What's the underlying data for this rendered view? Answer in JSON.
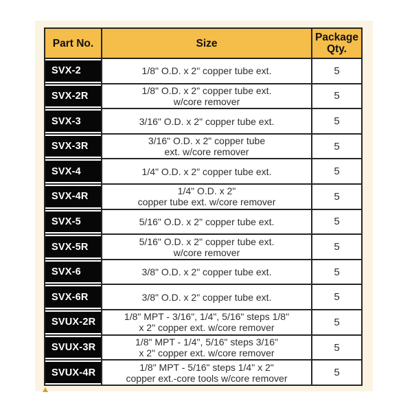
{
  "colors": {
    "page_bg": "#ffffff",
    "halo": "#fbf4e2",
    "header_bg": "#f5bd4a",
    "border": "#262626",
    "part_bg": "#070707",
    "part_text": "#ffffff",
    "size_text": "#2e2e2e",
    "marker": "#d8a31e"
  },
  "table": {
    "header": {
      "part_no": "Part No.",
      "size": "Size",
      "package_qty": "Package\nQty."
    },
    "rows": [
      {
        "part": "SVX-2",
        "size": "1/8\" O.D. x 2\" copper tube ext.",
        "qty": "5"
      },
      {
        "part": "SVX-2R",
        "size": "1/8\" O.D. x 2\" copper tube ext.\nw/core remover",
        "qty": "5"
      },
      {
        "part": "SVX-3",
        "size": "3/16\" O.D. x 2\" copper tube ext.",
        "qty": "5"
      },
      {
        "part": "SVX-3R",
        "size": "3/16\" O.D. x 2\" copper tube\next. w/core remover",
        "qty": "5"
      },
      {
        "part": "SVX-4",
        "size": "1/4\" O.D. x 2\" copper tube ext.",
        "qty": "5"
      },
      {
        "part": "SVX-4R",
        "size": "1/4\" O.D. x 2\"\ncopper tube ext. w/core remover",
        "qty": "5"
      },
      {
        "part": "SVX-5",
        "size": "5/16\" O.D. x 2\" copper tube ext.",
        "qty": "5"
      },
      {
        "part": "SVX-5R",
        "size": "5/16\" O.D. x 2\" copper tube ext.\nw/core remover",
        "qty": "5"
      },
      {
        "part": "SVX-6",
        "size": "3/8\" O.D. x 2\" copper tube ext.",
        "qty": "5"
      },
      {
        "part": "SVX-6R",
        "size": "3/8\" O.D. x 2\" copper tube ext.",
        "qty": "5"
      },
      {
        "part": "SVUX-2R",
        "size": "1/8\" MPT - 3/16\", 1/4\", 5/16\" steps 1/8\"\nx 2\" copper ext. w/core remover",
        "qty": "5"
      },
      {
        "part": "SVUX-3R",
        "size": "1/8\" MPT - 1/4\", 5/16\" steps 3/16\"\nx 2\" copper ext. w/core remover",
        "qty": "5"
      },
      {
        "part": "SVUX-4R",
        "size": "1/8\" MPT - 5/16\" steps 1/4\" x 2\"\ncopper ext.-core tools w/core remover",
        "qty": "5"
      }
    ]
  }
}
